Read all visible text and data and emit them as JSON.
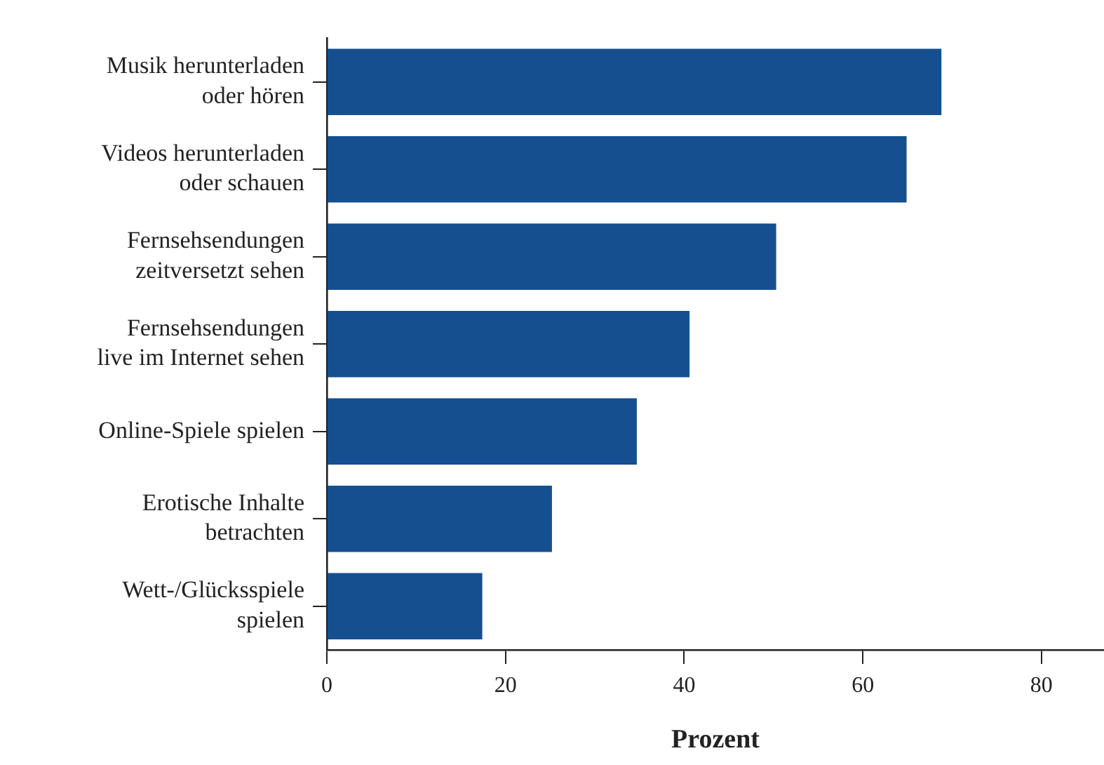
{
  "chart_data": {
    "type": "bar",
    "orientation": "horizontal",
    "xlabel": "Prozent",
    "categories": [
      "Musik herunterladen\noder hören",
      "Videos herunterladen\noder schauen",
      "Fernsehsendungen\nzeitversetzt sehen",
      "Fernsehsendungen\nlive im Internet sehen",
      "Online-Spiele spielen",
      "Erotische Inhalte\nbetrachten",
      "Wett-/Glücksspiele\nspielen"
    ],
    "values": [
      68.8,
      64.9,
      50.3,
      40.6,
      34.7,
      25.2,
      17.4
    ],
    "color": "#154f8f",
    "xlim": [
      0,
      87
    ],
    "xticks": [
      0,
      20,
      40,
      60,
      80
    ],
    "grid": false,
    "legend": false
  }
}
